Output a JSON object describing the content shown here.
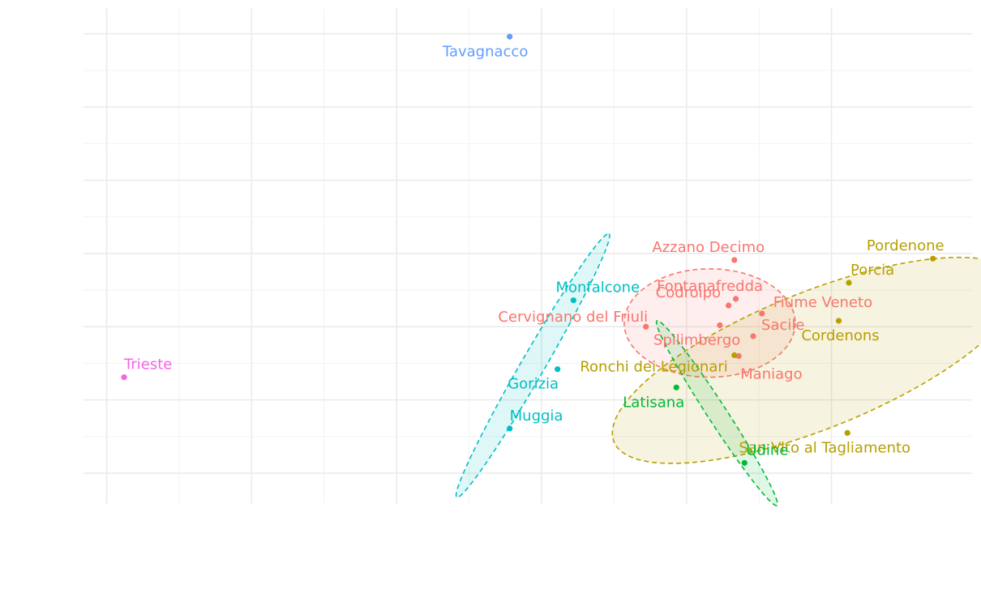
{
  "chart_data": {
    "type": "scatter",
    "title": "",
    "xlabel": "",
    "ylabel": "",
    "xlim": [
      -0.16,
      5.97
    ],
    "ylim": [
      -0.42,
      6.35
    ],
    "x_gridlines": [
      0,
      1,
      2,
      3,
      4,
      5
    ],
    "y_gridlines": [
      0,
      1,
      2,
      3,
      4,
      5,
      6
    ],
    "grid": true,
    "legend": "none",
    "ellipse_style": "dashed outline with light fill, one per group",
    "groups": [
      {
        "color": "#F8766D",
        "ellipse": {
          "cx": 4.16,
          "cy": 2.05,
          "rx": 0.59,
          "ry": 0.74,
          "angle": 0
        },
        "points": [
          {
            "label": "Azzano Decimo",
            "x": 4.33,
            "y": 2.91
          },
          {
            "label": "Fontanafredda",
            "x": 4.34,
            "y": 2.38
          },
          {
            "label": "Codroipo",
            "x": 4.29,
            "y": 2.29
          },
          {
            "label": "Fiume Veneto",
            "x": 4.52,
            "y": 2.18
          },
          {
            "label": "Sacile",
            "x": 4.46,
            "y": 1.87
          },
          {
            "label": "Spilimbergo",
            "x": 4.23,
            "y": 2.02
          },
          {
            "label": "Maniago",
            "x": 4.36,
            "y": 1.6
          },
          {
            "label": "Cervignano del Friuli",
            "x": 3.72,
            "y": 2.0
          }
        ]
      },
      {
        "color": "#B79F00",
        "ellipse": {
          "cx": 4.89,
          "cy": 1.54,
          "rx": 1.5,
          "ry": 0.93,
          "angle": -22
        },
        "points": [
          {
            "label": "Pordenone",
            "x": 5.7,
            "y": 2.93
          },
          {
            "label": "Porcia",
            "x": 5.12,
            "y": 2.6
          },
          {
            "label": "Cordenons",
            "x": 5.05,
            "y": 2.08
          },
          {
            "label": "Ronchi dei Legionari",
            "x": 4.33,
            "y": 1.61
          },
          {
            "label": "San Vito al Tagliamento",
            "x": 5.11,
            "y": 0.55
          }
        ]
      },
      {
        "color": "#00BA38",
        "ellipse": {
          "cx": 4.21,
          "cy": 0.82,
          "rx": 0.76,
          "ry": 0.13,
          "angle": 57
        },
        "points": [
          {
            "label": "Latisana",
            "x": 3.93,
            "y": 1.17
          },
          {
            "label": "Udine",
            "x": 4.4,
            "y": 0.14
          }
        ]
      },
      {
        "color": "#00BFC4",
        "ellipse": {
          "cx": 2.94,
          "cy": 1.47,
          "rx": 1.05,
          "ry": 0.16,
          "angle": -60
        },
        "points": [
          {
            "label": "Monfalcone",
            "x": 3.22,
            "y": 2.36
          },
          {
            "label": "Gorizia",
            "x": 3.11,
            "y": 1.42
          },
          {
            "label": "Muggia",
            "x": 2.78,
            "y": 0.61
          }
        ]
      },
      {
        "color": "#619CFF",
        "points": [
          {
            "label": "Tavagnacco",
            "x": 2.78,
            "y": 5.96
          }
        ]
      },
      {
        "color": "#F564E3",
        "points": [
          {
            "label": "Trieste",
            "x": 0.12,
            "y": 1.31
          }
        ]
      }
    ]
  }
}
